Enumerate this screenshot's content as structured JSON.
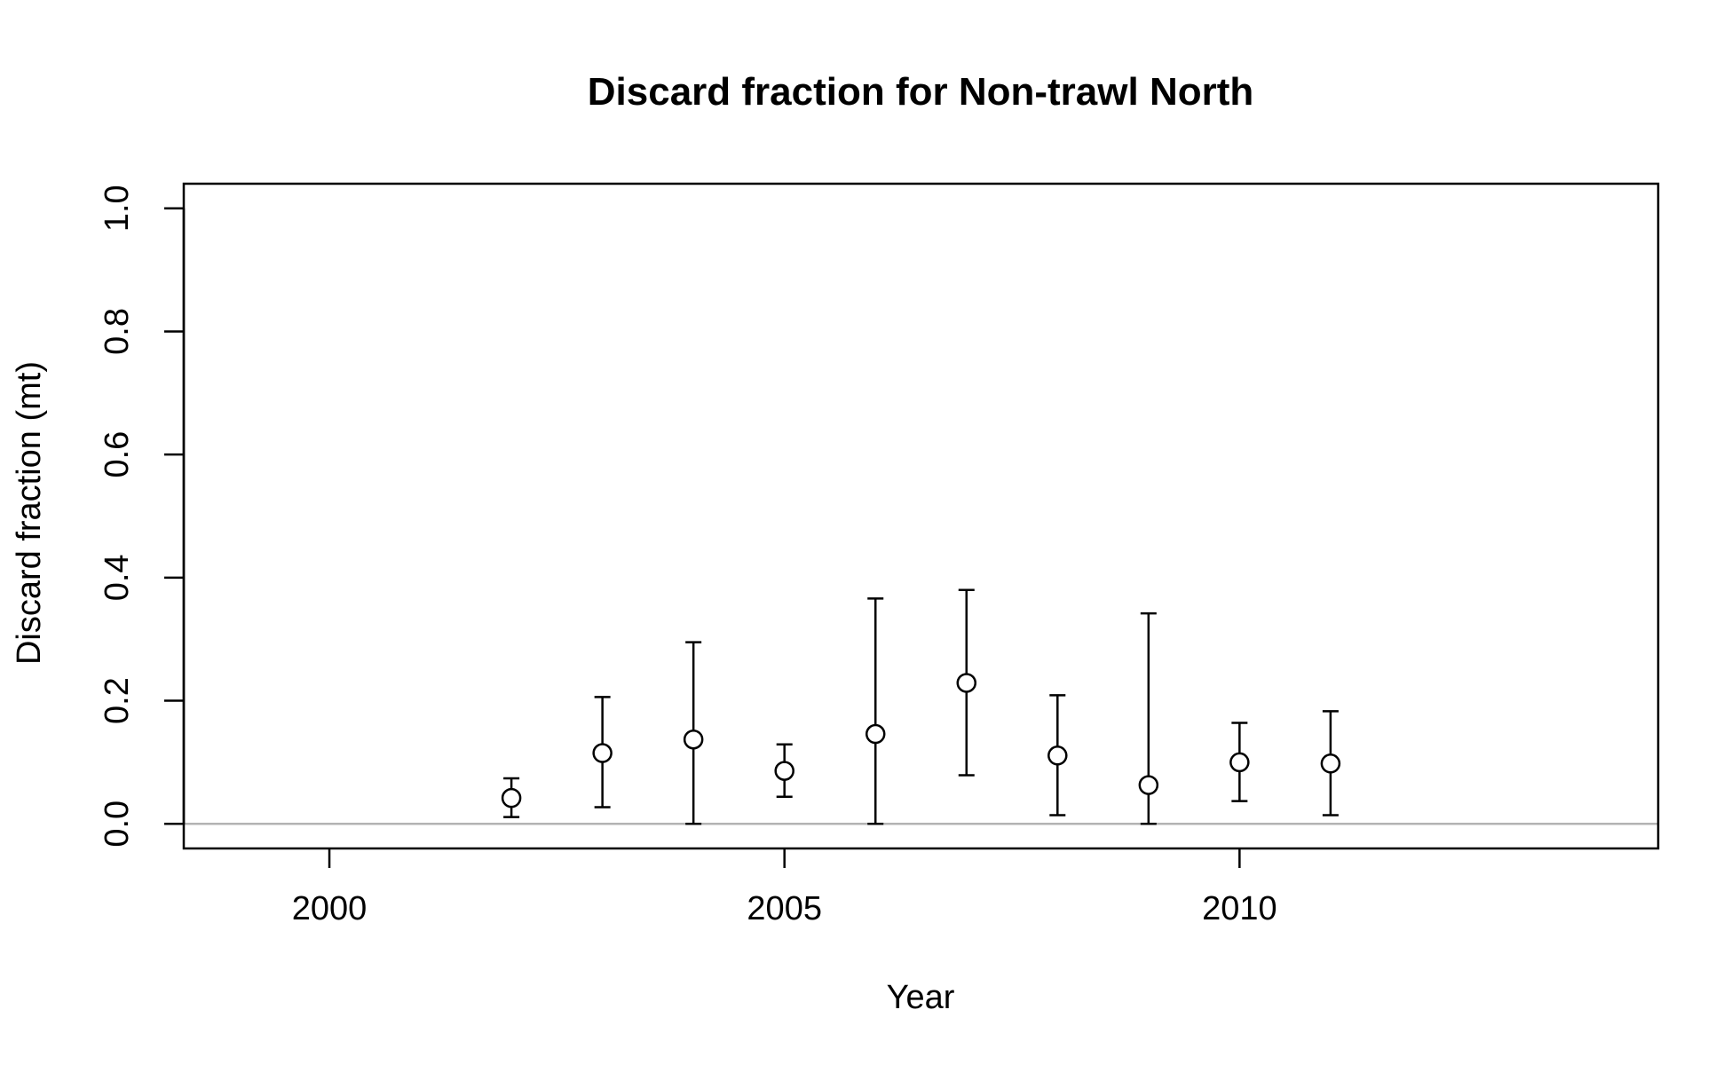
{
  "chart_data": {
    "type": "scatter",
    "title": "Discard fraction for Non-trawl North",
    "xlabel": "Year",
    "ylabel": "Discard fraction (mt)",
    "xlim": [
      1998.4,
      2014.6
    ],
    "ylim": [
      -0.04,
      1.04
    ],
    "x_ticks": [
      2000,
      2005,
      2010
    ],
    "y_ticks": [
      0.0,
      0.2,
      0.4,
      0.6,
      0.8,
      1.0
    ],
    "x_tick_labels": [
      "2000",
      "2005",
      "2010"
    ],
    "y_tick_labels": [
      "0.0",
      "0.2",
      "0.4",
      "0.6",
      "0.8",
      "1.0"
    ],
    "reference_line": {
      "y": 0.0,
      "color": "#b3b3b3"
    },
    "grid": false,
    "points": [
      {
        "x": 2002,
        "y": 0.042,
        "lower": 0.011,
        "upper": 0.074
      },
      {
        "x": 2003,
        "y": 0.115,
        "lower": 0.027,
        "upper": 0.206
      },
      {
        "x": 2004,
        "y": 0.137,
        "lower": 0.0,
        "upper": 0.295
      },
      {
        "x": 2005,
        "y": 0.086,
        "lower": 0.044,
        "upper": 0.129
      },
      {
        "x": 2006,
        "y": 0.146,
        "lower": 0.0,
        "upper": 0.366
      },
      {
        "x": 2007,
        "y": 0.229,
        "lower": 0.079,
        "upper": 0.38
      },
      {
        "x": 2008,
        "y": 0.111,
        "lower": 0.014,
        "upper": 0.209
      },
      {
        "x": 2009,
        "y": 0.063,
        "lower": 0.0,
        "upper": 0.342
      },
      {
        "x": 2010,
        "y": 0.1,
        "lower": 0.037,
        "upper": 0.164
      },
      {
        "x": 2011,
        "y": 0.098,
        "lower": 0.014,
        "upper": 0.183
      }
    ]
  }
}
